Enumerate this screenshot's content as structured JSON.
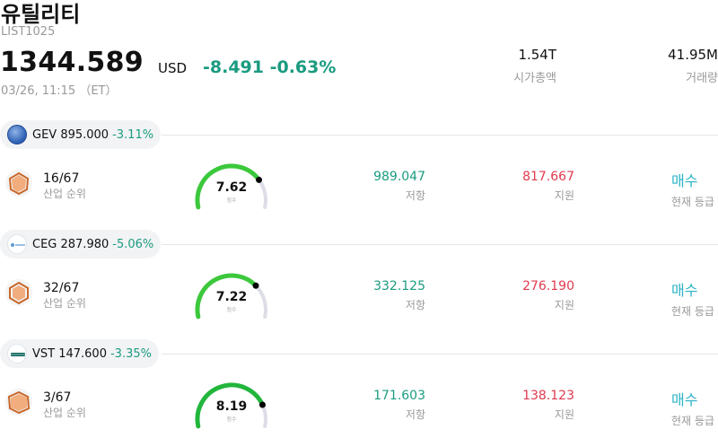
{
  "header": {
    "title": "유틸리티",
    "code": "LIST1025",
    "price": "1344.589",
    "currency": "USD",
    "change": "-8.491 -0.63%",
    "time": "03/26, 11:15 （ET）",
    "market_cap_value": "1.54T",
    "market_cap_label": "시가총액",
    "volume_value": "41.95M",
    "volume_label": "거래량"
  },
  "colors": {
    "positive_teal": "#1a9b80",
    "support_red": "#e03a4e",
    "rating_cyan": "#2ab3c6",
    "gauge_green": "#3cc83c"
  },
  "items": [
    {
      "ticker": "GEV 895.000",
      "change": "-3.11%",
      "logo": "ge-vernova-logo",
      "rank": "16/67",
      "rank_label": "산업 순위",
      "score": "7.62",
      "score_fraction": 0.762,
      "score_label": "점수",
      "resistance": "989.047",
      "resistance_label": "저항",
      "support": "817.667",
      "support_label": "지원",
      "rating": "매수",
      "rating_label": "현재 등급"
    },
    {
      "ticker": "CEG 287.980",
      "change": "-5.06%",
      "logo": "constellation-logo",
      "rank": "32/67",
      "rank_label": "산업 순위",
      "score": "7.22",
      "score_fraction": 0.722,
      "score_label": "점수",
      "resistance": "332.125",
      "resistance_label": "저항",
      "support": "276.190",
      "support_label": "지원",
      "rating": "매수",
      "rating_label": "현재 등급"
    },
    {
      "ticker": "VST 147.600",
      "change": "-3.35%",
      "logo": "vistra-logo",
      "rank": "3/67",
      "rank_label": "산업 순위",
      "score": "8.19",
      "score_fraction": 0.819,
      "score_label": "점수",
      "resistance": "171.603",
      "resistance_label": "저항",
      "support": "138.123",
      "support_label": "지원",
      "rating": "매수",
      "rating_label": "현재 등급"
    }
  ]
}
